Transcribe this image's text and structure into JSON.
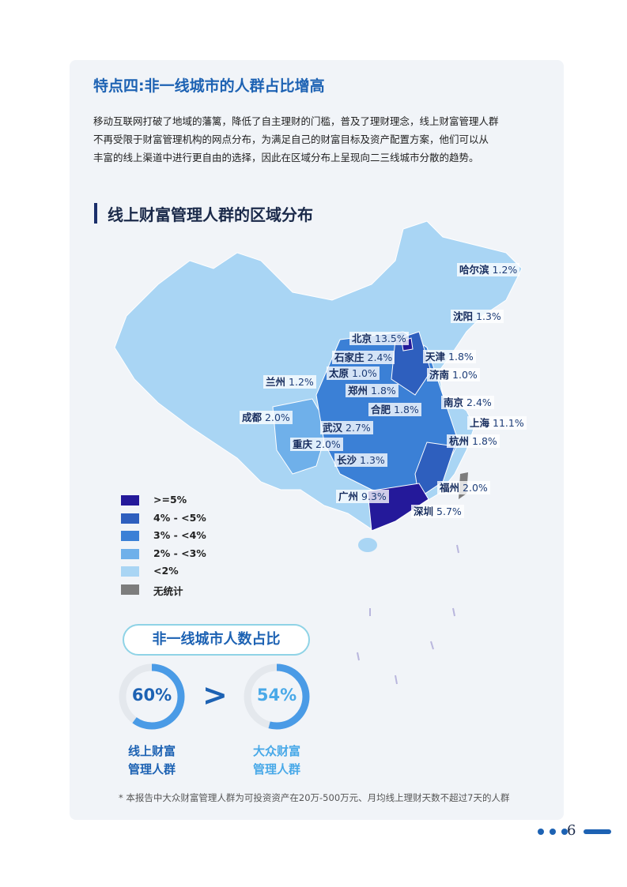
{
  "section": {
    "title": "特点四:非一线城市的人群占比增高",
    "body": [
      "移动互联网打破了地域的藩篱，降低了自主理财的门槛，普及了理财理念，线上财富管理人群",
      "不再受限于财富管理机构的网点分布，为满足自己的财富目标及资产配置方案，他们可以从",
      "丰富的线上渠道中进行更自由的选择，因此在区域分布上呈现向二三线城市分散的趋势。"
    ]
  },
  "map": {
    "title": "线上财富管理人群的区域分布",
    "cities": [
      {
        "name": "哈尔滨",
        "label": "1.2%"
      },
      {
        "name": "沈阳",
        "label": "1.3%"
      },
      {
        "name": "北京",
        "label": "13.5%"
      },
      {
        "name": "石家庄",
        "label": "2.4%"
      },
      {
        "name": "天津",
        "label": "1.8%"
      },
      {
        "name": "太原",
        "label": "1.0%"
      },
      {
        "name": "济南",
        "label": "1.0%"
      },
      {
        "name": "兰州",
        "label": "1.2%"
      },
      {
        "name": "郑州",
        "label": "1.8%"
      },
      {
        "name": "合肥",
        "label": "1.8%"
      },
      {
        "name": "南京",
        "label": "2.4%"
      },
      {
        "name": "成都",
        "label": "2.0%"
      },
      {
        "name": "上海",
        "label": "11.1%"
      },
      {
        "name": "武汉",
        "label": "2.7%"
      },
      {
        "name": "重庆",
        "label": "2.0%"
      },
      {
        "name": "杭州",
        "label": "1.8%"
      },
      {
        "name": "长沙",
        "label": "1.3%"
      },
      {
        "name": "福州",
        "label": "2.0%"
      },
      {
        "name": "广州",
        "label": "9.3%"
      },
      {
        "name": "深圳",
        "label": "5.7%"
      }
    ],
    "legend": [
      {
        "label": ">=5%",
        "color": "#24199a"
      },
      {
        "label": "4%  - <5%",
        "color": "#2e5fbe"
      },
      {
        "label": "3%  - <4%",
        "color": "#3b80d6"
      },
      {
        "label": "2%  - <3%",
        "color": "#6fb0ea"
      },
      {
        "label": "<2%",
        "color": "#a9d5f4"
      },
      {
        "label": "无统计",
        "color": "#7d7d7d"
      }
    ]
  },
  "comparison": {
    "title": "非一线城市人数占比",
    "operator": ">",
    "items": [
      {
        "value": 60,
        "label": "60%",
        "caption": [
          "线上财富",
          "管理人群"
        ]
      },
      {
        "value": 54,
        "label": "54%",
        "caption": [
          "大众财富",
          "管理人群"
        ]
      }
    ]
  },
  "footnote": "* 本报告中大众财富管理人群为可投资资产在20万-500万元、月均线上理财天数不超过7天的人群",
  "page_number": "6"
}
